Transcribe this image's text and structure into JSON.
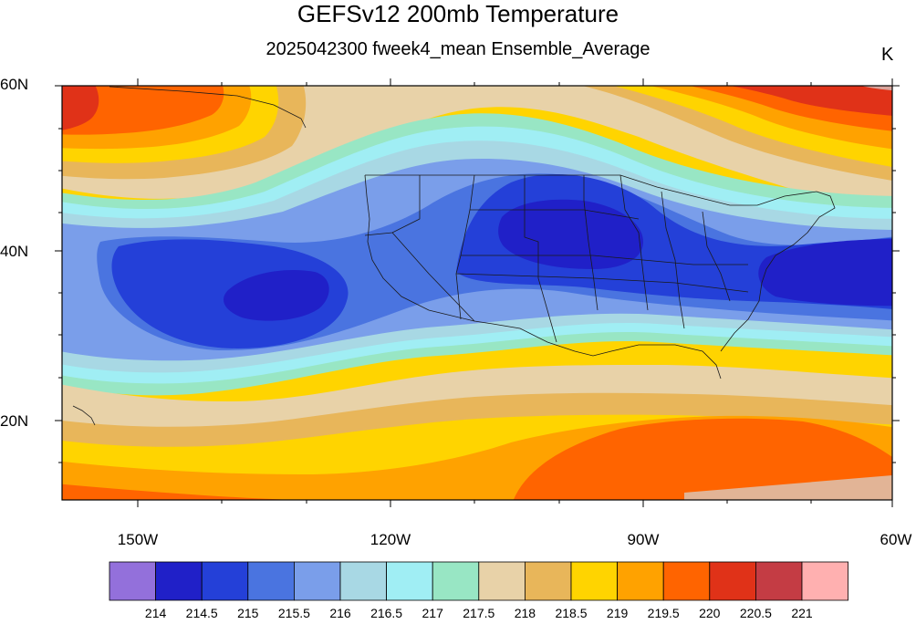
{
  "title": "GEFSv12 200mb Temperature",
  "subtitle": "2025042300 fweek4_mean Ensemble_Average",
  "units": "K",
  "axes": {
    "lat_labels": [
      "60N",
      "40N",
      "20N"
    ],
    "lon_labels": [
      "150W",
      "120W",
      "90W",
      "60W"
    ]
  },
  "colorbar": {
    "colors": [
      "#9370db",
      "#2020c8",
      "#2440d8",
      "#4a74e0",
      "#7a9eea",
      "#a8d8e4",
      "#a0eef4",
      "#98e6c4",
      "#e8d2a8",
      "#e8b65a",
      "#ffd400",
      "#ffa200",
      "#ff6400",
      "#e03218",
      "#c43c44",
      "#ffb0b0"
    ],
    "labels": [
      "214",
      "214.5",
      "215",
      "215.5",
      "216",
      "216.5",
      "217",
      "217.5",
      "218",
      "218.5",
      "219",
      "219.5",
      "220",
      "220.5",
      "221"
    ]
  }
}
